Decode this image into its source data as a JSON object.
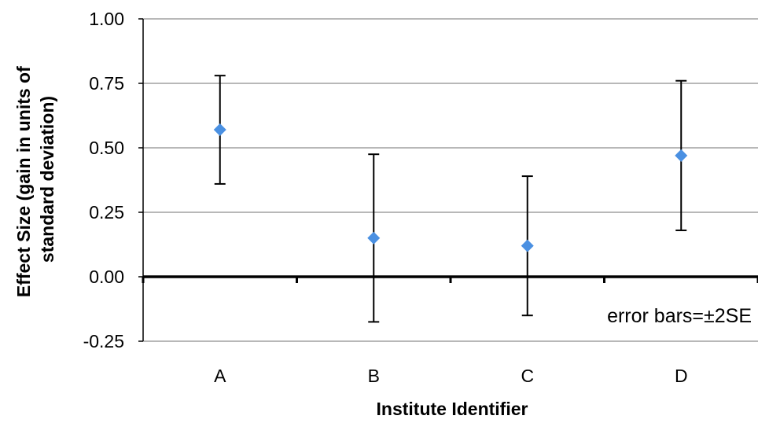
{
  "chart_data": {
    "type": "scatter",
    "xlabel": "Institute Identifier",
    "ylabel_lines": [
      "Effect Size (gain in units of",
      "standard deviation)"
    ],
    "categories": [
      "A",
      "B",
      "C",
      "D"
    ],
    "series": [
      {
        "values": [
          0.57,
          0.15,
          0.12,
          0.47
        ],
        "error_low": [
          0.36,
          -0.175,
          -0.15,
          0.18
        ],
        "error_high": [
          0.78,
          0.475,
          0.39,
          0.76
        ],
        "color": "#4a90e2"
      }
    ],
    "ylim": [
      -0.25,
      1.0
    ],
    "yticks": [
      -0.25,
      0.0,
      0.25,
      0.5,
      0.75,
      1.0
    ],
    "ytick_labels": [
      "-0.25",
      "0.00",
      "0.25",
      "0.50",
      "0.75",
      "1.00"
    ],
    "grid": true,
    "grid_color": "#a0a0a0",
    "axis_color": "#000000",
    "errorbar_color": "#000000",
    "annotation": "error bars=±2SE"
  }
}
